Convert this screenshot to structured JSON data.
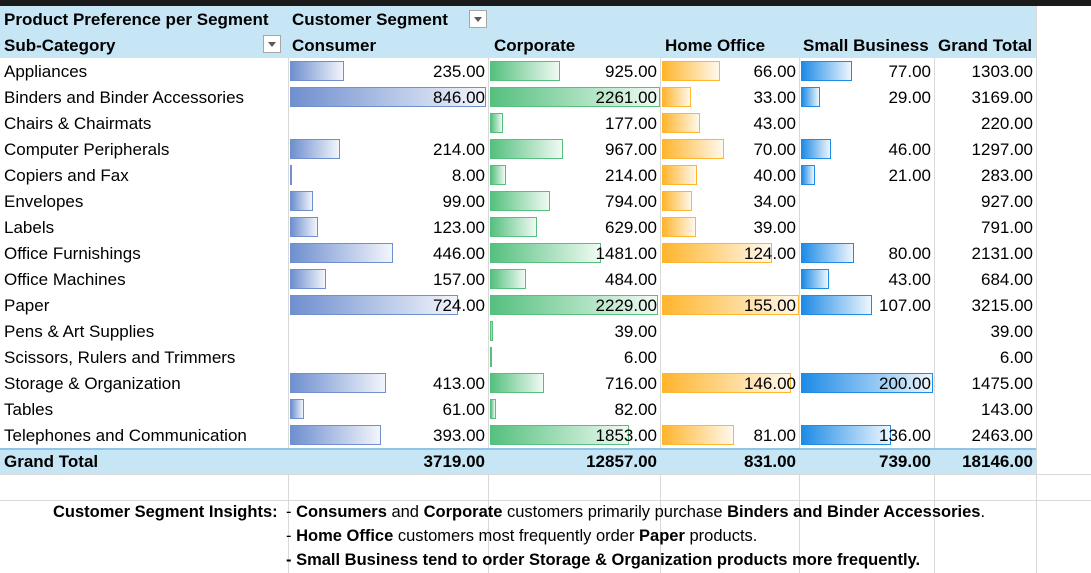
{
  "pivot": {
    "title": "Product Preference per Segment",
    "column_field": "Customer Segment",
    "row_field": "Sub-Category",
    "columns": [
      "Consumer",
      "Corporate",
      "Home Office",
      "Small Business",
      "Grand Total"
    ],
    "rows": [
      {
        "label": "Appliances",
        "consumer": "235.00",
        "corporate": "925.00",
        "home_office": "66.00",
        "small_business": "77.00",
        "total": "1303.00"
      },
      {
        "label": "Binders and Binder Accessories",
        "consumer": "846.00",
        "corporate": "2261.00",
        "home_office": "33.00",
        "small_business": "29.00",
        "total": "3169.00"
      },
      {
        "label": "Chairs & Chairmats",
        "consumer": "",
        "corporate": "177.00",
        "home_office": "43.00",
        "small_business": "",
        "total": "220.00"
      },
      {
        "label": "Computer Peripherals",
        "consumer": "214.00",
        "corporate": "967.00",
        "home_office": "70.00",
        "small_business": "46.00",
        "total": "1297.00"
      },
      {
        "label": "Copiers and Fax",
        "consumer": "8.00",
        "corporate": "214.00",
        "home_office": "40.00",
        "small_business": "21.00",
        "total": "283.00"
      },
      {
        "label": "Envelopes",
        "consumer": "99.00",
        "corporate": "794.00",
        "home_office": "34.00",
        "small_business": "",
        "total": "927.00"
      },
      {
        "label": "Labels",
        "consumer": "123.00",
        "corporate": "629.00",
        "home_office": "39.00",
        "small_business": "",
        "total": "791.00"
      },
      {
        "label": "Office Furnishings",
        "consumer": "446.00",
        "corporate": "1481.00",
        "home_office": "124.00",
        "small_business": "80.00",
        "total": "2131.00"
      },
      {
        "label": "Office Machines",
        "consumer": "157.00",
        "corporate": "484.00",
        "home_office": "",
        "small_business": "43.00",
        "total": "684.00"
      },
      {
        "label": "Paper",
        "consumer": "724.00",
        "corporate": "2229.00",
        "home_office": "155.00",
        "small_business": "107.00",
        "total": "3215.00"
      },
      {
        "label": "Pens & Art Supplies",
        "consumer": "",
        "corporate": "39.00",
        "home_office": "",
        "small_business": "",
        "total": "39.00"
      },
      {
        "label": "Scissors, Rulers and Trimmers",
        "consumer": "",
        "corporate": "6.00",
        "home_office": "",
        "small_business": "",
        "total": "6.00"
      },
      {
        "label": "Storage & Organization",
        "consumer": "413.00",
        "corporate": "716.00",
        "home_office": "146.00",
        "small_business": "200.00",
        "total": "1475.00"
      },
      {
        "label": "Tables",
        "consumer": "61.00",
        "corporate": "82.00",
        "home_office": "",
        "small_business": "",
        "total": "143.00"
      },
      {
        "label": "Telephones and Communication",
        "consumer": "393.00",
        "corporate": "1853.00",
        "home_office": "81.00",
        "small_business": "136.00",
        "total": "2463.00"
      }
    ],
    "grand_total": {
      "label": "Grand Total",
      "consumer": "3719.00",
      "corporate": "12857.00",
      "home_office": "831.00",
      "small_business": "739.00",
      "total": "18146.00"
    },
    "bar_scale_max": {
      "consumer": 846,
      "corporate": 2261,
      "home_office": 155,
      "small_business": 200
    }
  },
  "insights": {
    "heading": "Customer Segment Insights:",
    "line1": [
      {
        "t": "- ",
        "b": false
      },
      {
        "t": "Consumers",
        "b": true
      },
      {
        "t": " and ",
        "b": false
      },
      {
        "t": "Corporate",
        "b": true
      },
      {
        "t": " customers primarily purchase ",
        "b": false
      },
      {
        "t": "Binders and Binder Accessories",
        "b": true
      },
      {
        "t": ".",
        "b": false
      }
    ],
    "line2": [
      {
        "t": "- ",
        "b": false
      },
      {
        "t": "Home Office",
        "b": true
      },
      {
        "t": " customers most frequently order ",
        "b": false
      },
      {
        "t": "Paper",
        "b": true
      },
      {
        "t": " products.",
        "b": false
      }
    ],
    "line3": [
      {
        "t": "- Small Business tend to order Storage & Organization products more frequently.",
        "b": true
      }
    ]
  },
  "colors": {
    "header_band": "#c6e6f5",
    "consumer_bar": "#6f8fcf",
    "corporate_bar": "#55c07e",
    "home_office_bar": "#ffb52e",
    "small_business_bar": "#1e8be6"
  }
}
